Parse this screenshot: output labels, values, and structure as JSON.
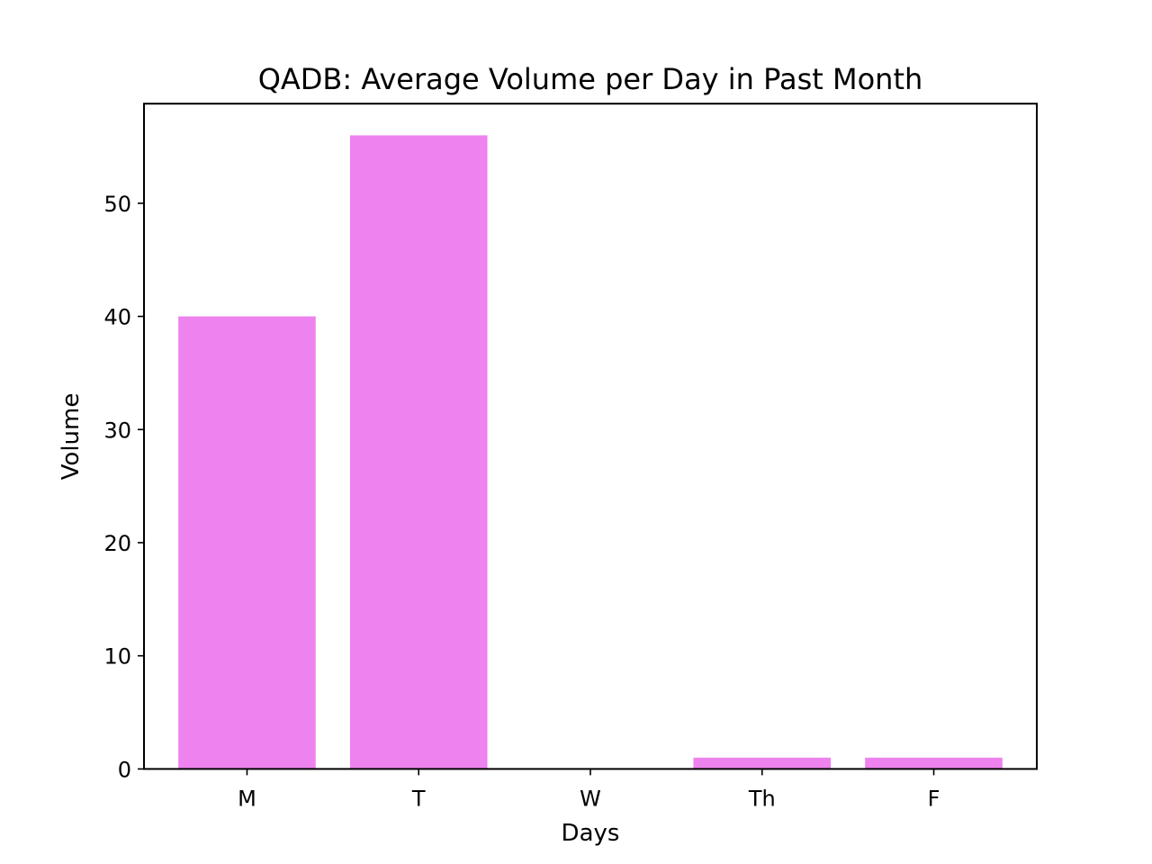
{
  "chart_data": {
    "type": "bar",
    "title": "QADB: Average Volume per Day in Past Month",
    "xlabel": "Days",
    "ylabel": "Volume",
    "categories": [
      "M",
      "T",
      "W",
      "Th",
      "F"
    ],
    "values": [
      40,
      56,
      0,
      1,
      1
    ],
    "ylim": [
      0,
      58.8
    ],
    "yticks": [
      0,
      10,
      20,
      30,
      40,
      50
    ],
    "bar_color": "#ee82ee",
    "grid": false,
    "legend": "none"
  }
}
